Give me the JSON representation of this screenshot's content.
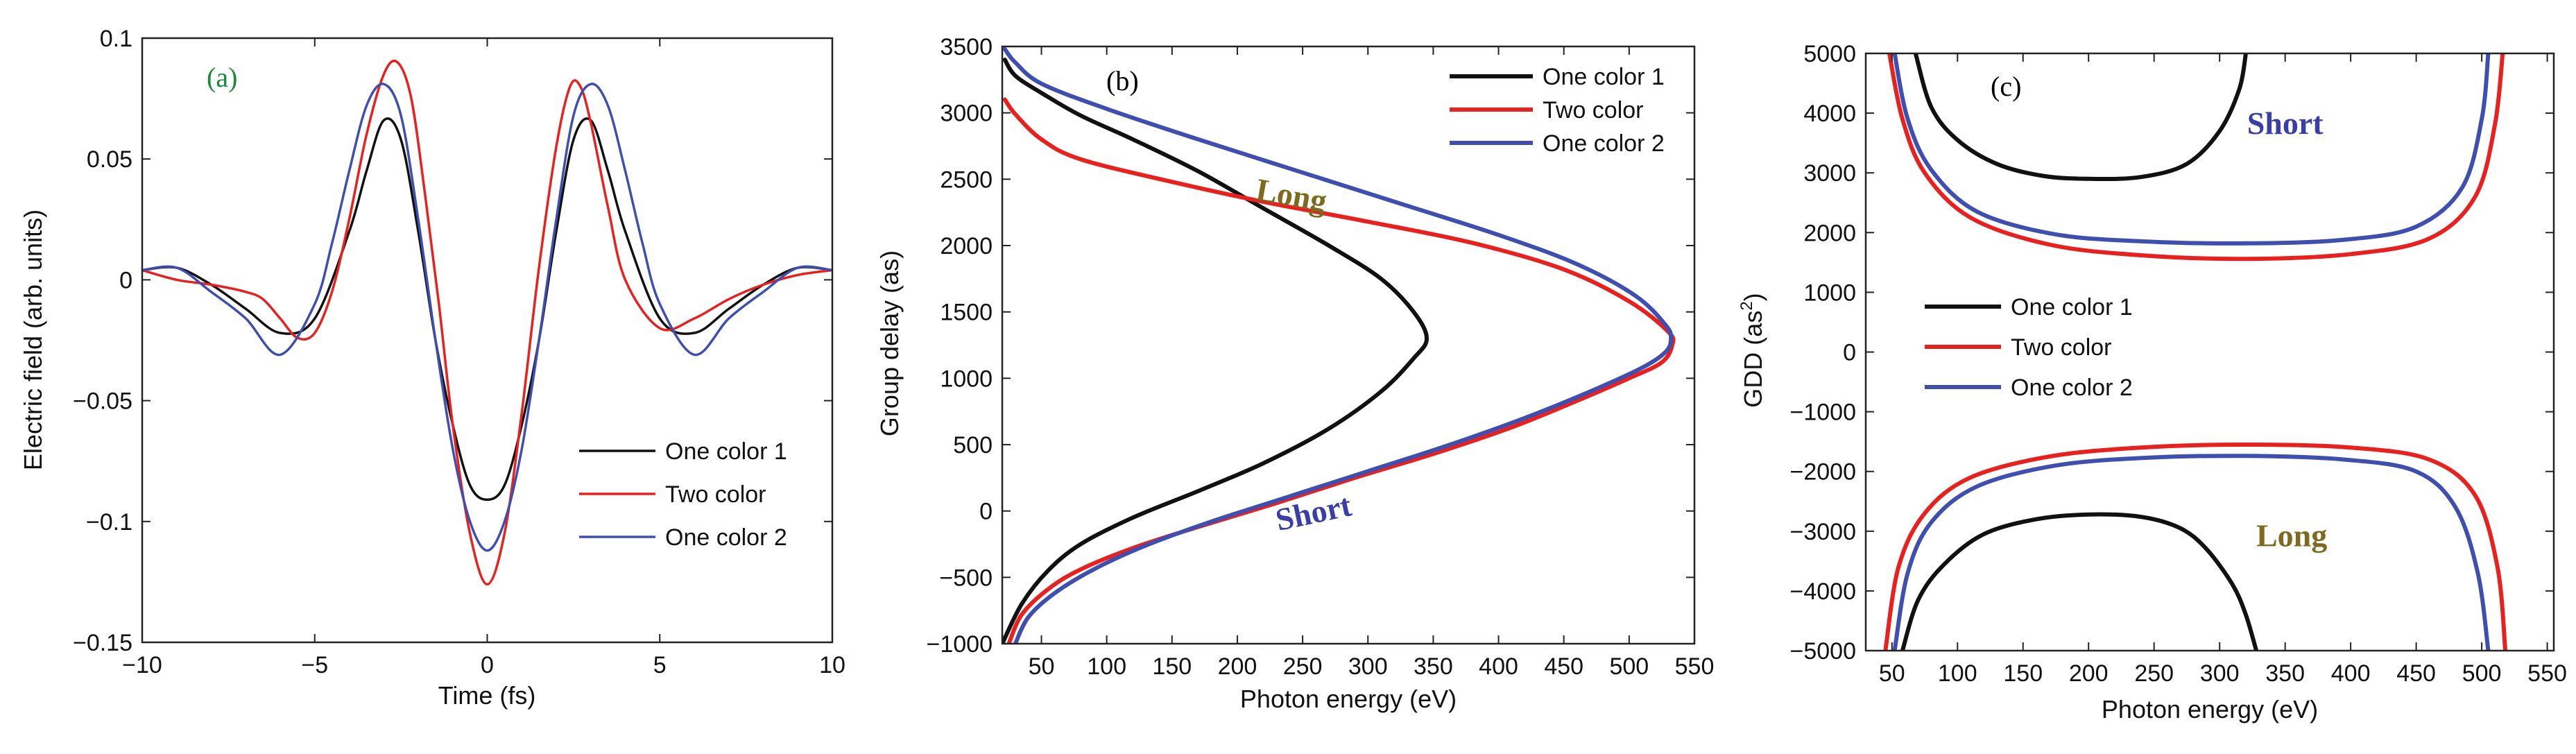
{
  "chart_data": [
    {
      "type": "line",
      "panel": "(a)",
      "panel_color": "#1a8a3a",
      "xlabel": "Time (fs)",
      "ylabel": "Electric field (arb. units)",
      "xlim": [
        -10,
        10
      ],
      "ylim": [
        -0.15,
        0.1
      ],
      "xticks": [
        -10,
        -5,
        0,
        5,
        10
      ],
      "xtick_labels": [
        "−10",
        "−5",
        "0",
        "5",
        "10"
      ],
      "yticks": [
        -0.15,
        -0.1,
        -0.05,
        0,
        0.05,
        0.1
      ],
      "ytick_labels": [
        "−0.15",
        "−0.1",
        "−0.05",
        "0",
        "0.05",
        "0.1"
      ],
      "legend_position": "lower-right",
      "series": [
        {
          "name": "One color 1",
          "color": "#111111",
          "x": [
            -10,
            -9,
            -8,
            -7,
            -6,
            -5,
            -4,
            -3.5,
            -3,
            -2.5,
            -2,
            -1.5,
            -1,
            -0.5,
            0,
            0.5,
            1,
            1.5,
            2,
            2.5,
            3,
            3.5,
            4,
            5,
            6,
            7,
            8,
            9,
            10
          ],
          "y": [
            0.004,
            0.005,
            -0.002,
            -0.012,
            -0.022,
            -0.016,
            0.02,
            0.045,
            0.066,
            0.058,
            0.02,
            -0.025,
            -0.06,
            -0.085,
            -0.091,
            -0.085,
            -0.06,
            -0.025,
            0.02,
            0.058,
            0.066,
            0.045,
            0.02,
            -0.016,
            -0.022,
            -0.012,
            -0.002,
            0.005,
            0.004
          ]
        },
        {
          "name": "Two color",
          "color": "#e8201e",
          "x": [
            -10,
            -9,
            -8,
            -7,
            -6.5,
            -6,
            -5.5,
            -5,
            -4.5,
            -4,
            -3.5,
            -3,
            -2.6,
            -2.2,
            -1.8,
            -1.4,
            -1,
            -0.5,
            0,
            0.5,
            1,
            1.5,
            2,
            2.4,
            2.7,
            3,
            3.5,
            4,
            5,
            6,
            7,
            8,
            9,
            10
          ],
          "y": [
            0.004,
            0,
            -0.002,
            -0.005,
            -0.008,
            -0.016,
            -0.024,
            -0.022,
            -0.005,
            0.025,
            0.06,
            0.085,
            0.09,
            0.075,
            0.035,
            -0.01,
            -0.06,
            -0.105,
            -0.126,
            -0.105,
            -0.055,
            0.005,
            0.055,
            0.08,
            0.08,
            0.065,
            0.03,
            0,
            -0.02,
            -0.016,
            -0.008,
            -0.002,
            0.002,
            0.004
          ]
        },
        {
          "name": "One color 2",
          "color": "#3f4fb0",
          "x": [
            -10,
            -9,
            -8,
            -7,
            -6,
            -5,
            -4.5,
            -4,
            -3.5,
            -3,
            -2.5,
            -2,
            -1.5,
            -1,
            -0.5,
            0,
            0.5,
            1,
            1.5,
            2,
            2.5,
            3,
            3.5,
            4,
            4.5,
            5,
            6,
            7,
            8,
            9,
            10
          ],
          "y": [
            0.004,
            0.005,
            -0.005,
            -0.016,
            -0.031,
            -0.01,
            0.015,
            0.045,
            0.072,
            0.081,
            0.068,
            0.025,
            -0.025,
            -0.07,
            -0.1,
            -0.112,
            -0.1,
            -0.07,
            -0.025,
            0.025,
            0.068,
            0.081,
            0.072,
            0.045,
            0.015,
            -0.01,
            -0.031,
            -0.016,
            -0.005,
            0.005,
            0.004
          ]
        }
      ]
    },
    {
      "type": "line",
      "panel": "(b)",
      "xlabel": "Photon energy (eV)",
      "ylabel": "Group delay (as)",
      "xlim": [
        20,
        550
      ],
      "ylim": [
        -1000,
        3500
      ],
      "xticks": [
        50,
        100,
        150,
        200,
        250,
        300,
        350,
        400,
        450,
        500,
        550
      ],
      "xtick_labels": [
        "50",
        "100",
        "150",
        "200",
        "250",
        "300",
        "350",
        "400",
        "450",
        "500",
        "550"
      ],
      "yticks": [
        -1000,
        -500,
        0,
        500,
        1000,
        1500,
        2000,
        2500,
        3000,
        3500
      ],
      "ytick_labels": [
        "−1000",
        "−500",
        "0",
        "500",
        "1000",
        "1500",
        "2000",
        "2500",
        "3000",
        "3500"
      ],
      "legend_position": "top-right",
      "annotations": [
        {
          "text": "Long",
          "color": "#7d6a1e",
          "x": 240,
          "y": 2300
        },
        {
          "text": "Short",
          "color": "#3a3fa8",
          "x": 260,
          "y": -90
        }
      ],
      "series": [
        {
          "name": "One color 1",
          "color": "#111111",
          "x": [
            20,
            35,
            55,
            80,
            120,
            170,
            220,
            270,
            310,
            335,
            345,
            335,
            310,
            270,
            220,
            170,
            120,
            80,
            50,
            30,
            22
          ],
          "y": [
            -1000,
            -700,
            -450,
            -250,
            -50,
            150,
            360,
            620,
            900,
            1150,
            1300,
            1500,
            1750,
            2000,
            2280,
            2560,
            2800,
            2980,
            3150,
            3280,
            3400
          ]
        },
        {
          "name": "Two color",
          "color": "#e8201e",
          "x": [
            25,
            35,
            55,
            80,
            120,
            170,
            230,
            290,
            350,
            410,
            460,
            500,
            525,
            533,
            530,
            500,
            450,
            380,
            300,
            220,
            150,
            80,
            50,
            30,
            22
          ],
          "y": [
            -1000,
            -780,
            -590,
            -440,
            -280,
            -120,
            60,
            250,
            430,
            630,
            830,
            1000,
            1120,
            1250,
            1350,
            1580,
            1820,
            2020,
            2180,
            2330,
            2480,
            2650,
            2800,
            2990,
            3100
          ]
        },
        {
          "name": "One color 2",
          "color": "#3f4fb0",
          "x": [
            30,
            40,
            60,
            90,
            130,
            180,
            240,
            300,
            360,
            420,
            470,
            510,
            528,
            532,
            528,
            505,
            460,
            400,
            330,
            250,
            170,
            100,
            50,
            30,
            22
          ],
          "y": [
            -1000,
            -800,
            -620,
            -440,
            -260,
            -80,
            110,
            300,
            490,
            700,
            900,
            1080,
            1200,
            1300,
            1400,
            1620,
            1860,
            2080,
            2300,
            2550,
            2800,
            3030,
            3220,
            3380,
            3480
          ]
        }
      ]
    },
    {
      "type": "line",
      "panel": "(c)",
      "xlabel": "Photon energy (eV)",
      "ylabel": "GDD (as",
      "ylabel_sup": "2",
      "ylabel_close": ")",
      "xlim": [
        30,
        555
      ],
      "ylim": [
        -5000,
        5000
      ],
      "xticks": [
        50,
        100,
        150,
        200,
        250,
        300,
        350,
        400,
        450,
        500,
        550
      ],
      "xtick_labels": [
        "50",
        "100",
        "150",
        "200",
        "250",
        "300",
        "350",
        "400",
        "450",
        "500",
        "550"
      ],
      "yticks": [
        -5000,
        -4000,
        -3000,
        -2000,
        -1000,
        0,
        1000,
        2000,
        3000,
        4000,
        5000
      ],
      "ytick_labels": [
        "−5000",
        "−4000",
        "−3000",
        "−2000",
        "−1000",
        "0",
        "1000",
        "2000",
        "3000",
        "4000",
        "5000"
      ],
      "legend_position": "center-left",
      "annotations": [
        {
          "text": "Short",
          "color": "#3a3fa8",
          "x": 350,
          "y": 3650
        },
        {
          "text": "Long",
          "color": "#7d6a1e",
          "x": 355,
          "y": -3250
        }
      ],
      "series": [
        {
          "name": "One color 1",
          "color": "#111111",
          "branches": [
            {
              "x": [
                68,
                80,
                100,
                130,
                165,
                200,
                240,
                275,
                300,
                315,
                320
              ],
              "y": [
                5000,
                4100,
                3550,
                3150,
                2950,
                2900,
                2930,
                3150,
                3700,
                4400,
                5000
              ]
            },
            {
              "x": [
                58,
                70,
                90,
                120,
                160,
                200,
                240,
                270,
                290,
                310,
                320,
                328
              ],
              "y": [
                -5000,
                -4150,
                -3550,
                -3050,
                -2800,
                -2720,
                -2760,
                -2950,
                -3300,
                -3900,
                -4400,
                -5000
              ]
            }
          ]
        },
        {
          "name": "Two color",
          "color": "#e8201e",
          "branches": [
            {
              "x": [
                48,
                58,
                75,
                110,
                170,
                240,
                320,
                400,
                460,
                495,
                510,
                516
              ],
              "y": [
                5000,
                3900,
                3000,
                2250,
                1800,
                1620,
                1560,
                1640,
                1900,
                2600,
                3800,
                5000
              ]
            },
            {
              "x": [
                45,
                55,
                75,
                110,
                170,
                240,
                320,
                400,
                460,
                495,
                512,
                518
              ],
              "y": [
                -5000,
                -3600,
                -2700,
                -2100,
                -1750,
                -1600,
                -1550,
                -1600,
                -1800,
                -2400,
                -3600,
                -5000
              ]
            }
          ]
        },
        {
          "name": "One color 2",
          "color": "#3f4fb0",
          "branches": [
            {
              "x": [
                52,
                62,
                80,
                115,
                175,
                245,
                320,
                395,
                450,
                485,
                500,
                505
              ],
              "y": [
                5000,
                3900,
                3050,
                2350,
                1970,
                1850,
                1820,
                1880,
                2100,
                2750,
                3900,
                5000
              ]
            },
            {
              "x": [
                52,
                62,
                80,
                115,
                175,
                245,
                320,
                395,
                450,
                480,
                497,
                505
              ],
              "y": [
                -5000,
                -3700,
                -2850,
                -2250,
                -1900,
                -1770,
                -1740,
                -1800,
                -2000,
                -2600,
                -3700,
                -5000
              ]
            }
          ]
        }
      ]
    }
  ]
}
